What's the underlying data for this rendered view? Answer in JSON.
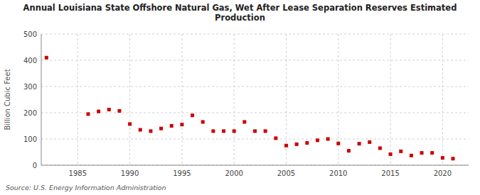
{
  "chart_data": {
    "type": "scatter",
    "title": "Annual Louisiana State Offshore Natural Gas, Wet After Lease Separation Reserves Estimated\nProduction",
    "y_label": "Billion Cubic Feet",
    "source": "Source: U.S. Energy Information Administration",
    "x": [
      1982,
      1986,
      1987,
      1988,
      1989,
      1990,
      1991,
      1992,
      1993,
      1994,
      1995,
      1996,
      1997,
      1998,
      1999,
      2000,
      2001,
      2002,
      2003,
      2004,
      2005,
      2006,
      2007,
      2008,
      2009,
      2010,
      2011,
      2012,
      2013,
      2014,
      2015,
      2016,
      2017,
      2018,
      2019,
      2020,
      2021
    ],
    "values": [
      410,
      195,
      205,
      212,
      207,
      157,
      135,
      130,
      140,
      150,
      155,
      190,
      165,
      130,
      130,
      130,
      165,
      130,
      130,
      103,
      75,
      80,
      85,
      95,
      100,
      83,
      55,
      82,
      88,
      65,
      42,
      53,
      37,
      47,
      47,
      28,
      25
    ],
    "color": "#cc0000",
    "marker": "square",
    "xlim": [
      1981.5,
      2022.5
    ],
    "xticks": [
      1985,
      1990,
      1995,
      2000,
      2005,
      2010,
      2015,
      2020
    ],
    "ylim": [
      0,
      500
    ],
    "yticks": [
      0,
      100,
      200,
      300,
      400,
      500
    ],
    "grid": true
  }
}
